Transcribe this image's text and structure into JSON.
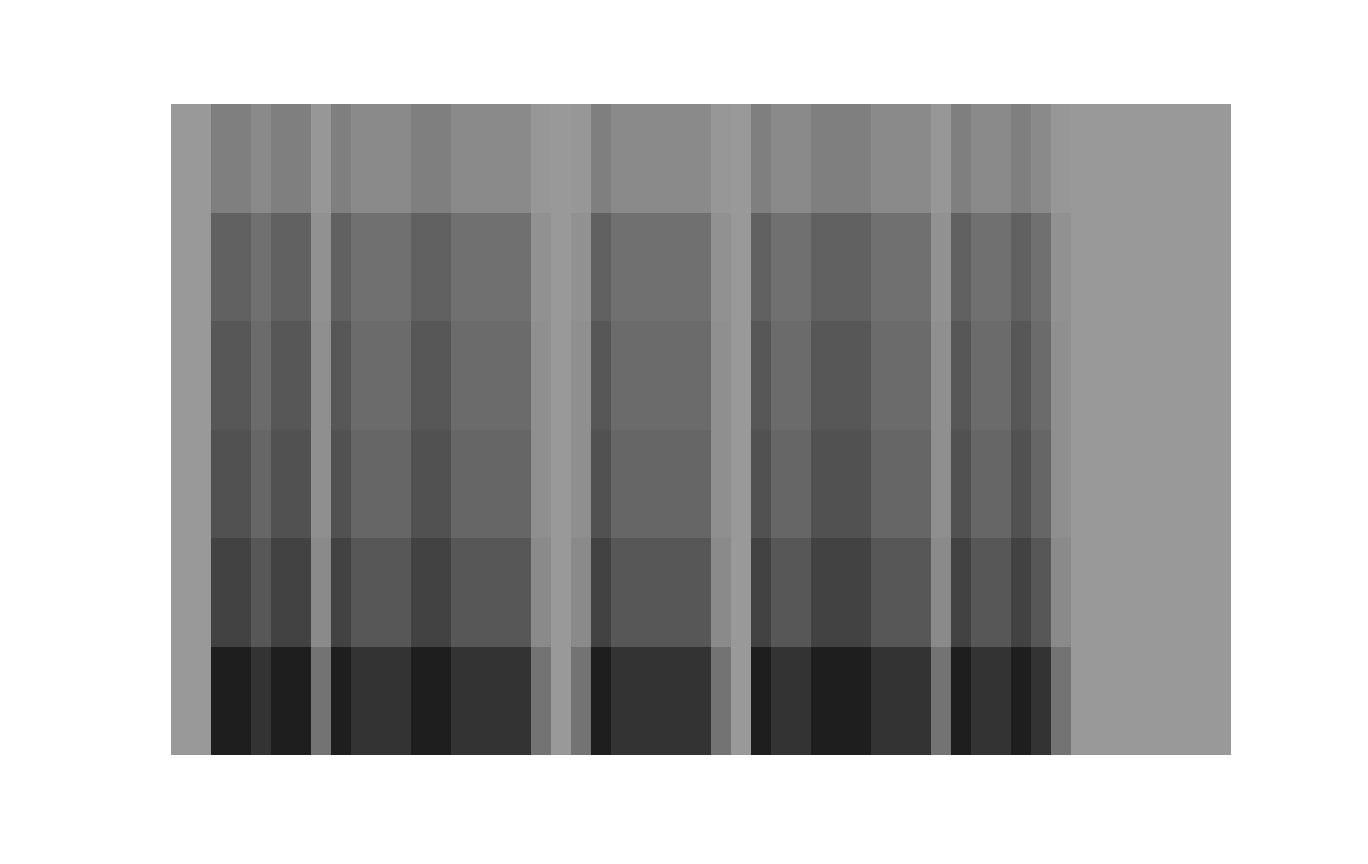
{
  "chart_data": {
    "type": "heatmap",
    "color": "gray_r",
    "tick_labels": false,
    "xlim": [
      0,
      53
    ],
    "ylim": [
      0,
      6
    ],
    "clim": [
      0,
      100
    ],
    "cells": [
      [
        40,
        40,
        88,
        88,
        80,
        88,
        88,
        55,
        88,
        80,
        80,
        80,
        88,
        88,
        80,
        80,
        80,
        80,
        55,
        40,
        55,
        88,
        80,
        80,
        80,
        80,
        80,
        55,
        40,
        88,
        80,
        80,
        88,
        88,
        88,
        80,
        80,
        80,
        55,
        88,
        80,
        80,
        88,
        80,
        55,
        40,
        40,
        40,
        40,
        40,
        40,
        40,
        40
      ],
      [
        40,
        40,
        74,
        74,
        66,
        74,
        74,
        46,
        74,
        66,
        66,
        66,
        74,
        74,
        66,
        66,
        66,
        66,
        46,
        40,
        46,
        74,
        66,
        66,
        66,
        66,
        66,
        46,
        40,
        74,
        66,
        66,
        74,
        74,
        74,
        66,
        66,
        66,
        46,
        74,
        66,
        66,
        74,
        66,
        46,
        40,
        40,
        40,
        40,
        40,
        40,
        40,
        40
      ],
      [
        40,
        40,
        68,
        68,
        60,
        68,
        68,
        44,
        68,
        60,
        60,
        60,
        68,
        68,
        60,
        60,
        60,
        60,
        44,
        40,
        44,
        68,
        60,
        60,
        60,
        60,
        60,
        44,
        40,
        68,
        60,
        60,
        68,
        68,
        68,
        60,
        60,
        60,
        44,
        68,
        60,
        60,
        68,
        60,
        44,
        40,
        40,
        40,
        40,
        40,
        40,
        40,
        40
      ],
      [
        40,
        40,
        66,
        66,
        58,
        66,
        66,
        44,
        66,
        58,
        58,
        58,
        66,
        66,
        58,
        58,
        58,
        58,
        44,
        40,
        44,
        66,
        58,
        58,
        58,
        58,
        58,
        44,
        40,
        66,
        58,
        58,
        66,
        66,
        66,
        58,
        58,
        58,
        44,
        66,
        58,
        58,
        66,
        58,
        44,
        40,
        40,
        40,
        40,
        40,
        40,
        40,
        40
      ],
      [
        40,
        40,
        62,
        62,
        56,
        62,
        62,
        43,
        62,
        56,
        56,
        56,
        62,
        62,
        56,
        56,
        56,
        56,
        43,
        40,
        43,
        62,
        56,
        56,
        56,
        56,
        56,
        43,
        40,
        62,
        56,
        56,
        62,
        62,
        62,
        56,
        56,
        56,
        43,
        62,
        56,
        56,
        62,
        56,
        43,
        40,
        40,
        40,
        40,
        40,
        40,
        40,
        40
      ],
      [
        40,
        40,
        50,
        50,
        46,
        50,
        50,
        41,
        50,
        46,
        46,
        46,
        50,
        50,
        46,
        46,
        46,
        46,
        41,
        40,
        41,
        50,
        46,
        46,
        46,
        46,
        46,
        41,
        40,
        50,
        46,
        46,
        50,
        50,
        50,
        46,
        46,
        46,
        41,
        50,
        46,
        46,
        50,
        46,
        41,
        40,
        40,
        40,
        40,
        40,
        40,
        40,
        40
      ]
    ]
  }
}
